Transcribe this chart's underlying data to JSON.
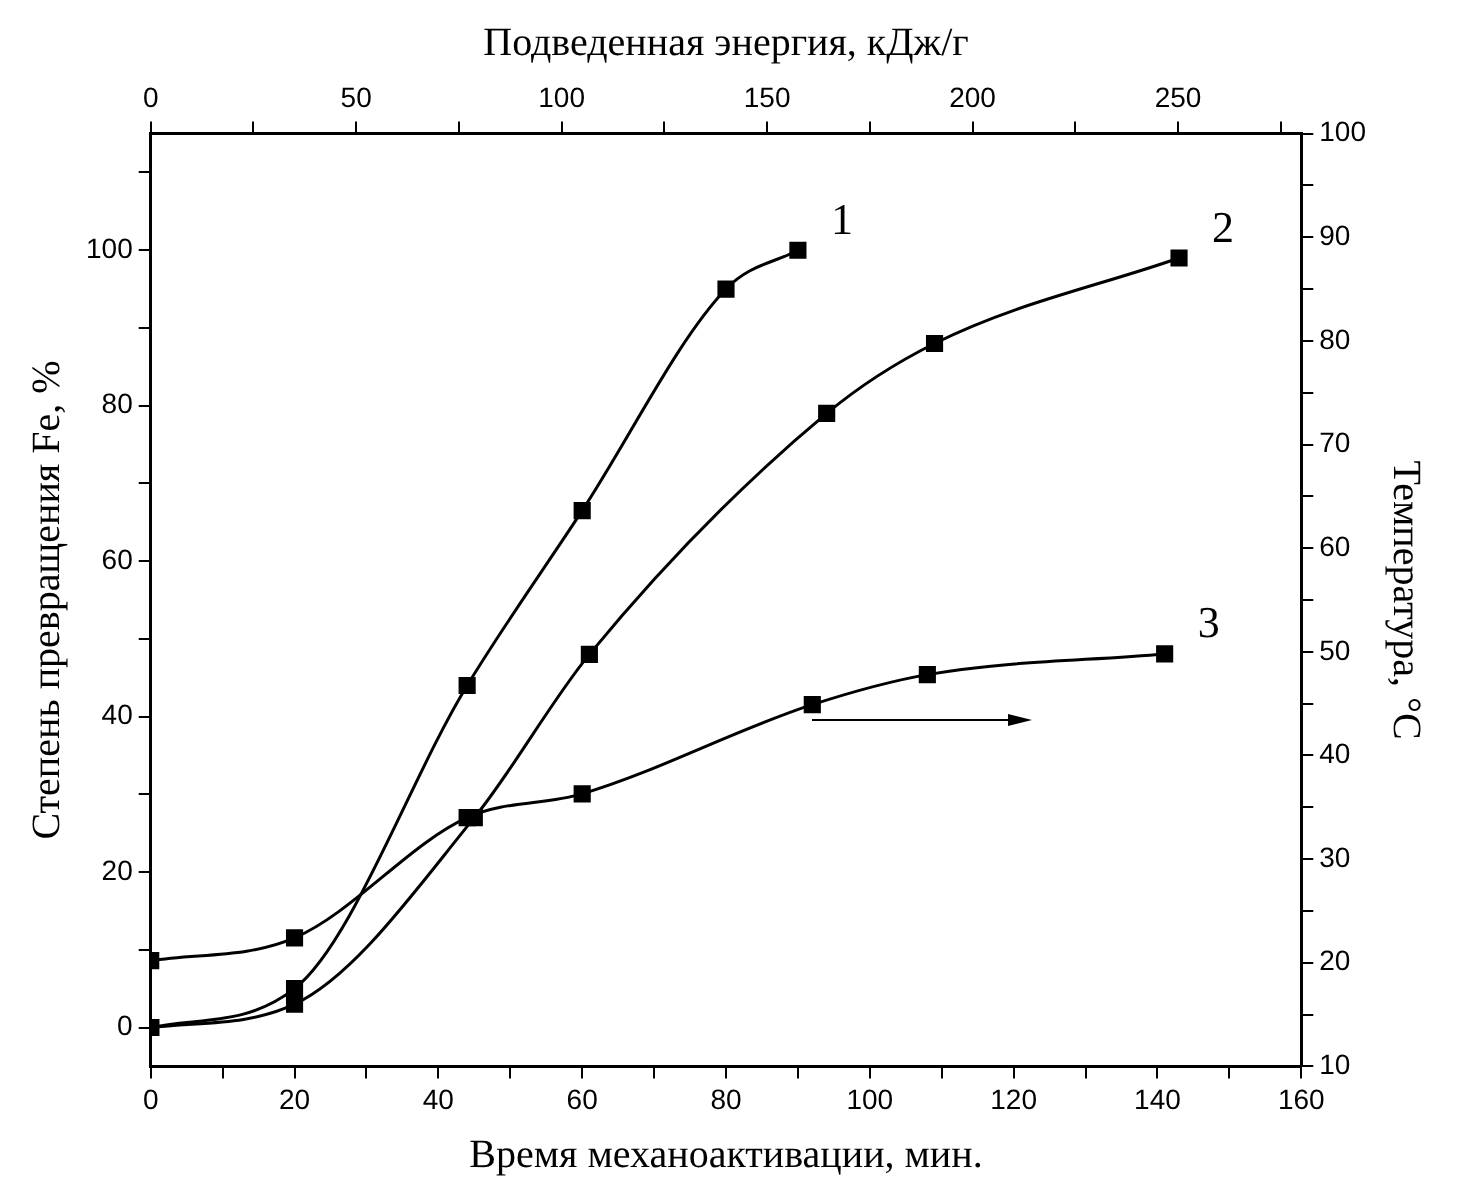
{
  "chart_data": {
    "type": "line",
    "xlabel": "Время механоактивации, мин.",
    "x2label": "Подведенная энергия, кДж/г",
    "ylabel": "Степень превращения Fe, %",
    "y2label": "Температура, °C",
    "xlim": [
      0,
      160
    ],
    "xticks": [
      0,
      {
        "value": 10,
        "label": null
      },
      20,
      {
        "value": 30,
        "label": null
      },
      40,
      {
        "value": 50,
        "label": null
      },
      60,
      {
        "value": 70,
        "label": null
      },
      80,
      {
        "value": 90,
        "label": null
      },
      100,
      {
        "value": 110,
        "label": null
      },
      120,
      {
        "value": 130,
        "label": null
      },
      140,
      {
        "value": 150,
        "label": null
      },
      160
    ],
    "x2lim": [
      0,
      280
    ],
    "x2ticks": [
      0,
      {
        "value": 25,
        "label": null
      },
      50,
      {
        "value": 75,
        "label": null
      },
      100,
      {
        "value": 125,
        "label": null
      },
      150,
      {
        "value": 175,
        "label": null
      },
      200,
      {
        "value": 225,
        "label": null
      },
      250,
      {
        "value": 275,
        "label": null
      }
    ],
    "ylim": [
      -5,
      115
    ],
    "yticks": [
      0,
      {
        "value": 10,
        "label": null
      },
      20,
      {
        "value": 30,
        "label": null
      },
      40,
      {
        "value": 50,
        "label": null
      },
      60,
      {
        "value": 70,
        "label": null
      },
      80,
      {
        "value": 90,
        "label": null
      },
      100,
      {
        "value": 110,
        "label": null
      }
    ],
    "y2lim": [
      10,
      100
    ],
    "y2ticks": [
      10,
      {
        "value": 15,
        "label": null
      },
      20,
      {
        "value": 25,
        "label": null
      },
      30,
      {
        "value": 35,
        "label": null
      },
      40,
      {
        "value": 45,
        "label": null
      },
      50,
      {
        "value": 55,
        "label": null
      },
      60,
      {
        "value": 65,
        "label": null
      },
      70,
      {
        "value": 75,
        "label": null
      },
      80,
      {
        "value": 85,
        "label": null
      },
      90,
      {
        "value": 95,
        "label": null
      },
      100
    ],
    "series": [
      {
        "color": "#000000",
        "x": [
          0,
          20,
          44,
          60,
          80,
          90
        ],
        "values": [
          0,
          5,
          44,
          66.5,
          95,
          100
        ]
      },
      {
        "color": "#000000",
        "x": [
          0,
          20,
          45,
          61,
          94,
          109,
          143
        ],
        "values": [
          0,
          3,
          27,
          48,
          79,
          88,
          99
        ]
      },
      {
        "color": "#000000",
        "axis": "y2",
        "x": [
          0,
          20,
          44,
          60,
          92,
          108,
          141
        ],
        "values": [
          20.2,
          22.4,
          34,
          36.3,
          44.9,
          47.8,
          49.8
        ]
      }
    ],
    "annotations": [
      "1",
      "2",
      "3"
    ],
    "marker": "square",
    "line_style": "solid",
    "grid": false,
    "legend": false
  }
}
